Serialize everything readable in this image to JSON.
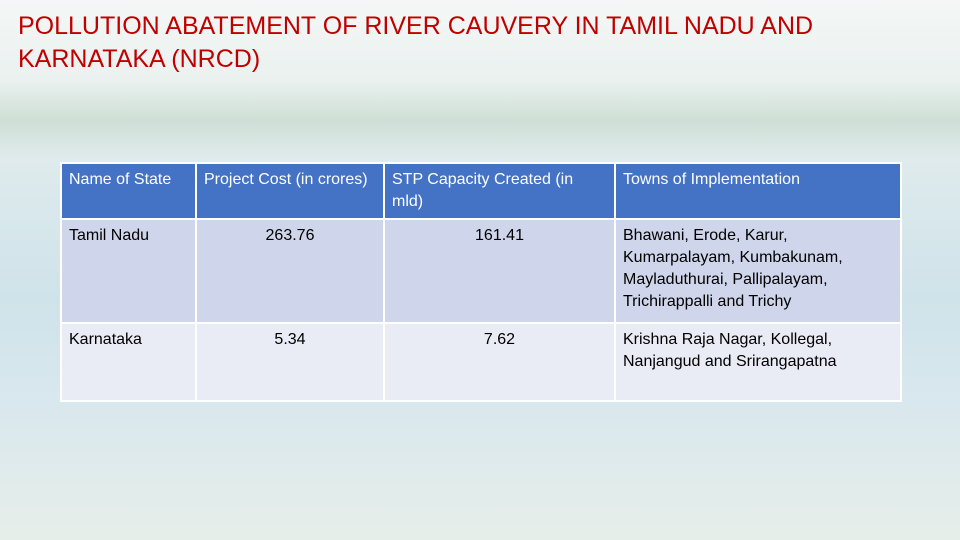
{
  "header": {
    "title": "POLLUTION ABATEMENT OF RIVER CAUVERY IN TAMIL NADU AND KARNATAKA (NRCD)"
  },
  "table": {
    "columns": [
      "Name of State",
      "Project Cost (in crores)",
      "STP Capacity Created (in mld)",
      "Towns of Implementation"
    ],
    "rows": [
      [
        "Tamil Nadu",
        "263.76",
        "161.41",
        "Bhawani, Erode, Karur, Kumarpalayam, Kumbakunam, Mayladuthurai, Pallipalayam, Trichirappalli and Trichy"
      ],
      [
        "Karnataka",
        "5.34",
        "7.62",
        "Krishna Raja Nagar, Kollegal, Nanjangud and Srirangapatna"
      ]
    ]
  }
}
